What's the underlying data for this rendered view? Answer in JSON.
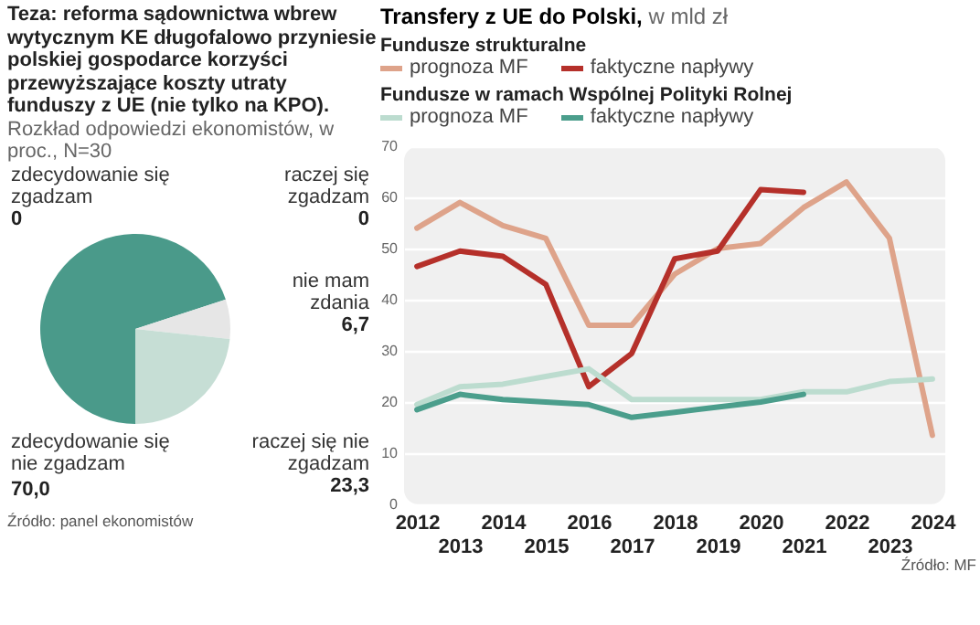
{
  "chart_data": [
    {
      "type": "pie",
      "title": "Teza: reforma sądownictwa wbrew wytycznym KE długofalowo przyniesie polskiej gospodarce korzyści przewyższające koszty utraty funduszy z UE (nie tylko na KPO).",
      "subtitle": "Rozkład odpowiedzi ekonomistów, w proc., N=30",
      "categories": [
        "zdecydowanie się nie zgadzam",
        "zdecydowanie się zgadzam",
        "raczej się zgadzam",
        "nie mam zdania",
        "raczej się nie zgadzam"
      ],
      "values": [
        70.0,
        0,
        0,
        6.7,
        23.3
      ],
      "value_labels": [
        "70,0",
        "0",
        "0",
        "6,7",
        "23,3"
      ],
      "colors": [
        "#4a9a8a",
        "#2f7f6f",
        "#8cc0b0",
        "#e6e6e6",
        "#c6ded5"
      ],
      "annotations": [
        "Źródło: panel ekonomistów"
      ]
    },
    {
      "type": "line",
      "title": "Transfery z UE do Polski,",
      "subtitle": "w mld zł",
      "categories": [
        "2012",
        "2013",
        "2014",
        "2015",
        "2016",
        "2017",
        "2018",
        "2019",
        "2020",
        "2021",
        "2022",
        "2023",
        "2024"
      ],
      "series": [
        {
          "name": "prognoza MF",
          "color": "#dea38a",
          "values": [
            54,
            59,
            54.5,
            52,
            35,
            35,
            45,
            50,
            51,
            58,
            63,
            52,
            13.5
          ]
        },
        {
          "name": "faktyczne napływy",
          "color": "#b5302a",
          "values": [
            46.5,
            49.5,
            48.5,
            43,
            23,
            29.5,
            48,
            49.5,
            61.5,
            61,
            null,
            null,
            null
          ]
        },
        {
          "name": "prognoza MF",
          "color": "#bcdccf",
          "values": [
            19.5,
            23,
            23.5,
            25,
            26.5,
            20.5,
            20.5,
            20.5,
            20.5,
            22,
            22,
            24,
            24.5
          ]
        },
        {
          "name": "faktyczne napływy",
          "color": "#4b9e8c",
          "values": [
            18.5,
            21.5,
            20.5,
            20,
            19.5,
            17,
            18,
            19,
            20,
            21.5,
            null,
            null,
            null
          ]
        }
      ],
      "ylim": [
        0,
        70
      ],
      "yticks": [
        0,
        10,
        20,
        30,
        40,
        50,
        60,
        70
      ],
      "grid": "y",
      "legend": "top",
      "annotations": [
        "Fundusze strukturalne",
        "Fundusze w ramach Wspólnej Polityki Rolnej",
        "Źródło: MF"
      ]
    }
  ]
}
